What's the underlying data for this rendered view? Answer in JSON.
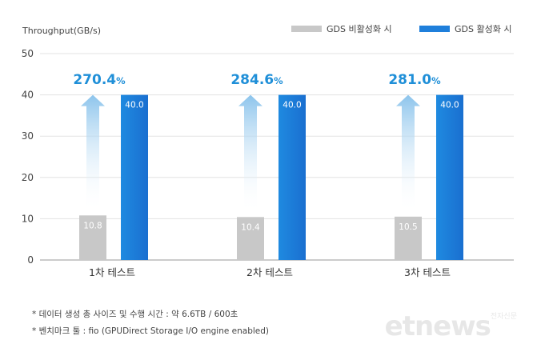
{
  "chart_data": {
    "type": "bar",
    "ylabel": "Throughput(GB/s)",
    "ylim": [
      0,
      50
    ],
    "yticks": [
      0,
      10,
      20,
      30,
      40,
      50
    ],
    "categories": [
      "1차 테스트",
      "2차 테스트",
      "3차 테스트"
    ],
    "series": [
      {
        "name": "GDS 비활성화 시",
        "color": "#c8c8c8",
        "values": [
          10.8,
          10.4,
          10.5
        ],
        "labels": [
          "10.8",
          "10.4",
          "10.5"
        ]
      },
      {
        "name": "GDS 활성화 시",
        "color": "#1f7fdb",
        "values": [
          40.0,
          40.0,
          40.0
        ],
        "labels": [
          "40.0",
          "40.0",
          "40.0"
        ]
      }
    ],
    "annotations": [
      {
        "value": "270.4",
        "unit": "%"
      },
      {
        "value": "284.6",
        "unit": "%"
      },
      {
        "value": "281.0",
        "unit": "%"
      }
    ],
    "legend_position": "top-right",
    "grid": true
  },
  "footnotes": [
    "* 데이터 생성 총 사이즈 및 수행 시간 : 약 6.6TB / 600초",
    "* 벤치마크 툴 : fio (GPUDirect Storage I/O engine enabled)"
  ],
  "watermark": {
    "text": "etnews",
    "sub": "전자신문"
  }
}
